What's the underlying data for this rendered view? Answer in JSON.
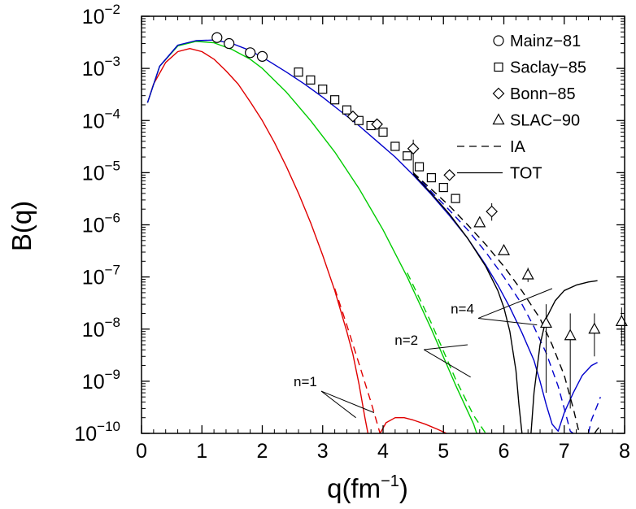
{
  "chart_data": {
    "type": "line",
    "xlabel": "q(fm",
    "xlabel_sup": "−1",
    "xlabel_close": ")",
    "ylabel": "B(q)",
    "xlim": [
      0,
      8
    ],
    "ylim": [
      1e-10,
      0.01
    ],
    "yscale": "log",
    "x_ticks": [
      "0",
      "1",
      "2",
      "3",
      "4",
      "5",
      "6",
      "7",
      "8"
    ],
    "y_ticks": [
      {
        "base": "10",
        "exp": "−10",
        "value": 1e-10
      },
      {
        "base": "10",
        "exp": "−9",
        "value": 1e-09
      },
      {
        "base": "10",
        "exp": "−8",
        "value": 1e-08
      },
      {
        "base": "10",
        "exp": "−7",
        "value": 1e-07
      },
      {
        "base": "10",
        "exp": "−6",
        "value": 1e-06
      },
      {
        "base": "10",
        "exp": "−5",
        "value": 1e-05
      },
      {
        "base": "10",
        "exp": "−4",
        "value": 0.0001
      },
      {
        "base": "10",
        "exp": "−3",
        "value": 0.001
      },
      {
        "base": "10",
        "exp": "−2",
        "value": 0.01
      }
    ],
    "legend": [
      {
        "label": "Mainz−81",
        "marker": "circle"
      },
      {
        "label": "Saclay−85",
        "marker": "square"
      },
      {
        "label": "Bonn−85",
        "marker": "diamond"
      },
      {
        "label": "SLAC−90",
        "marker": "triangle"
      },
      {
        "label": "IA",
        "marker": "dashed-line"
      },
      {
        "label": "TOT",
        "marker": "solid-line"
      }
    ],
    "legend_position": "top-right",
    "annotations": [
      {
        "text": "n=1",
        "x": 2.6,
        "y": 8e-10,
        "arrow_to": [
          [
            3.55,
            2e-10
          ],
          [
            3.85,
            2.5e-10
          ]
        ]
      },
      {
        "text": "n=2",
        "x": 4.3,
        "y": 5e-09,
        "arrow_to": [
          [
            5.4,
            5e-09
          ],
          [
            5.45,
            1.2e-09
          ]
        ]
      },
      {
        "text": "n=4",
        "x": 5.2,
        "y": 2e-08,
        "arrow_to": [
          [
            6.8,
            6e-08
          ],
          [
            6.55,
            1.2e-08
          ]
        ]
      }
    ],
    "series": [
      {
        "label": "n=1 TOT",
        "color": "#e00000",
        "dash": false,
        "points": [
          [
            0.1,
            0.00022
          ],
          [
            0.2,
            0.0005
          ],
          [
            0.4,
            0.0013
          ],
          [
            0.6,
            0.0021
          ],
          [
            0.8,
            0.0024
          ],
          [
            1.0,
            0.0021
          ],
          [
            1.2,
            0.0015
          ],
          [
            1.4,
            0.0009
          ],
          [
            1.6,
            0.0005
          ],
          [
            1.8,
            0.00023
          ],
          [
            2.0,
            0.0001
          ],
          [
            2.2,
            3.8e-05
          ],
          [
            2.4,
            1.3e-05
          ],
          [
            2.6,
            4e-06
          ],
          [
            2.8,
            1.1e-06
          ],
          [
            3.0,
            2.6e-07
          ],
          [
            3.2,
            5.5e-08
          ],
          [
            3.4,
            9e-09
          ],
          [
            3.5,
            3.3e-09
          ],
          [
            3.6,
            9e-10
          ],
          [
            3.7,
            2e-10
          ],
          [
            3.75,
            1e-10
          ]
        ]
      },
      {
        "label": "n=1 IA",
        "color": "#e00000",
        "dash": true,
        "points": [
          [
            3.2,
            6e-08
          ],
          [
            3.4,
            1.2e-08
          ],
          [
            3.6,
            2.2e-09
          ],
          [
            3.8,
            4e-10
          ],
          [
            3.95,
            1e-10
          ]
        ]
      },
      {
        "label": "n=1 TOT tail",
        "color": "#e00000",
        "dash": false,
        "points": [
          [
            3.95,
            1e-10
          ],
          [
            4.05,
            1.6e-10
          ],
          [
            4.2,
            2e-10
          ],
          [
            4.35,
            2e-10
          ],
          [
            4.5,
            1.8e-10
          ],
          [
            4.7,
            1.5e-10
          ],
          [
            4.9,
            1.2e-10
          ],
          [
            5.05,
            1e-10
          ]
        ]
      },
      {
        "label": "n=2 TOT",
        "color": "#00cc00",
        "dash": false,
        "points": [
          [
            0.1,
            0.00022
          ],
          [
            0.3,
            0.0011
          ],
          [
            0.6,
            0.0027
          ],
          [
            0.9,
            0.0033
          ],
          [
            1.2,
            0.0031
          ],
          [
            1.5,
            0.0023
          ],
          [
            1.8,
            0.0015
          ],
          [
            2.0,
            0.001
          ],
          [
            2.4,
            0.00035
          ],
          [
            2.8,
            0.0001
          ],
          [
            3.2,
            2.5e-05
          ],
          [
            3.6,
            5e-06
          ],
          [
            4.0,
            8e-07
          ],
          [
            4.4,
            1e-07
          ],
          [
            4.8,
            1e-08
          ],
          [
            5.2,
            8.5e-10
          ],
          [
            5.5,
            1.5e-10
          ],
          [
            5.55,
            1e-10
          ]
        ]
      },
      {
        "label": "n=2 IA",
        "color": "#00cc00",
        "dash": true,
        "points": [
          [
            4.4,
            1.2e-07
          ],
          [
            4.8,
            1.3e-08
          ],
          [
            5.2,
            1.1e-09
          ],
          [
            5.5,
            2.2e-10
          ],
          [
            5.7,
            1e-10
          ]
        ]
      },
      {
        "label": "n=4 TOT",
        "color": "#0000cc",
        "dash": false,
        "points": [
          [
            0.1,
            0.00022
          ],
          [
            0.3,
            0.0011
          ],
          [
            0.6,
            0.0028
          ],
          [
            0.9,
            0.0034
          ],
          [
            1.2,
            0.0035
          ],
          [
            1.5,
            0.003
          ],
          [
            1.8,
            0.0022
          ],
          [
            2.1,
            0.0014
          ],
          [
            2.4,
            0.00085
          ],
          [
            2.7,
            0.0005
          ],
          [
            3.0,
            0.00028
          ],
          [
            3.3,
            0.00015
          ],
          [
            3.6,
            8e-05
          ],
          [
            3.9,
            4e-05
          ],
          [
            4.2,
            2e-05
          ],
          [
            4.5,
            9e-06
          ],
          [
            4.8,
            3.8e-06
          ],
          [
            5.1,
            1.5e-06
          ],
          [
            5.4,
            5.5e-07
          ],
          [
            5.7,
            1.7e-07
          ],
          [
            5.9,
            7e-08
          ],
          [
            6.1,
            2.6e-08
          ],
          [
            6.3,
            8.5e-09
          ],
          [
            6.5,
            2.5e-09
          ],
          [
            6.6,
            1e-09
          ],
          [
            6.7,
            3.6e-10
          ],
          [
            6.8,
            1.5e-10
          ],
          [
            6.9,
            1.1e-10
          ],
          [
            7.0,
            2.5e-10
          ],
          [
            7.15,
            6e-10
          ],
          [
            7.3,
            1.3e-09
          ],
          [
            7.45,
            2e-09
          ],
          [
            7.55,
            2.3e-09
          ]
        ]
      },
      {
        "label": "n=4 IA",
        "color": "#0000cc",
        "dash": true,
        "points": [
          [
            4.5,
            1e-05
          ],
          [
            4.8,
            4.3e-06
          ],
          [
            5.1,
            1.9e-06
          ],
          [
            5.4,
            8e-07
          ],
          [
            5.7,
            3e-07
          ],
          [
            6.0,
            1e-07
          ],
          [
            6.3,
            3e-08
          ],
          [
            6.5,
            1.1e-08
          ],
          [
            6.7,
            3.5e-09
          ],
          [
            6.9,
            8e-10
          ],
          [
            7.0,
            3e-10
          ],
          [
            7.1,
            1.1e-10
          ],
          [
            7.15,
            1e-10
          ]
        ]
      },
      {
        "label": "n=4 IA tail",
        "color": "#0000cc",
        "dash": true,
        "points": [
          [
            7.4,
            1e-10
          ],
          [
            7.45,
            1.8e-10
          ],
          [
            7.55,
            3.5e-10
          ],
          [
            7.6,
            5e-10
          ]
        ]
      },
      {
        "label": "exact TOT",
        "color": "#000000",
        "dash": false,
        "points": [
          [
            4.5,
            9.5e-06
          ],
          [
            4.8,
            4e-06
          ],
          [
            5.1,
            1.6e-06
          ],
          [
            5.4,
            5.5e-07
          ],
          [
            5.7,
            1.6e-07
          ],
          [
            5.9,
            5.5e-08
          ],
          [
            6.0,
            2.6e-08
          ],
          [
            6.1,
            9e-09
          ],
          [
            6.2,
            1.6e-09
          ],
          [
            6.25,
            3.5e-10
          ],
          [
            6.3,
            1e-10
          ]
        ]
      },
      {
        "label": "exact TOT tail",
        "color": "#000000",
        "dash": false,
        "points": [
          [
            6.45,
            1e-10
          ],
          [
            6.5,
            6e-10
          ],
          [
            6.6,
            5e-09
          ],
          [
            6.7,
            1.6e-08
          ],
          [
            6.85,
            3.5e-08
          ],
          [
            7.0,
            5.5e-08
          ],
          [
            7.2,
            7e-08
          ],
          [
            7.4,
            8e-08
          ],
          [
            7.55,
            8.5e-08
          ]
        ]
      },
      {
        "label": "exact IA",
        "color": "#000000",
        "dash": true,
        "points": [
          [
            4.5,
            1e-05
          ],
          [
            4.8,
            4.8e-06
          ],
          [
            5.1,
            2.3e-06
          ],
          [
            5.4,
            1e-06
          ],
          [
            5.7,
            4.2e-07
          ],
          [
            6.0,
            1.6e-07
          ],
          [
            6.3,
            5.4e-08
          ],
          [
            6.6,
            1.6e-08
          ],
          [
            6.8,
            5e-09
          ],
          [
            7.0,
            1.3e-09
          ],
          [
            7.15,
            3e-10
          ],
          [
            7.25,
            1e-10
          ]
        ]
      },
      {
        "label": "exact IA tail",
        "color": "#000000",
        "dash": true,
        "points": [
          [
            7.5,
            1e-10
          ],
          [
            7.55,
            1.2e-10
          ],
          [
            7.6,
            1.4e-10
          ]
        ]
      }
    ],
    "data_points": {
      "Mainz-81": [
        [
          1.25,
          0.0039
        ],
        [
          1.45,
          0.003
        ],
        [
          1.8,
          0.002
        ],
        [
          2.0,
          0.0017
        ]
      ],
      "Saclay-85": [
        [
          2.6,
          0.00085
        ],
        [
          2.8,
          0.0006
        ],
        [
          3.0,
          0.0004
        ],
        [
          3.2,
          0.00025
        ],
        [
          3.4,
          0.00016
        ],
        [
          3.6,
          0.0001
        ],
        [
          3.8,
          8e-05
        ],
        [
          4.0,
          6e-05
        ],
        [
          4.2,
          3.2e-05
        ],
        [
          4.4,
          2.1e-05
        ],
        [
          4.6,
          1.3e-05
        ],
        [
          4.8,
          8e-06
        ],
        [
          5.0,
          5.2e-06
        ],
        [
          5.2,
          3.2e-06
        ]
      ],
      "Bonn-85": [
        [
          3.5,
          0.00012
        ],
        [
          3.9,
          8.5e-05
        ],
        [
          4.5,
          2.9e-05
        ],
        [
          5.1,
          9e-06
        ],
        [
          5.8,
          1.8e-06
        ]
      ],
      "SLAC-90": [
        [
          5.6,
          1.1e-06
        ],
        [
          6.0,
          3.2e-07
        ],
        [
          6.4,
          1.1e-07
        ],
        [
          6.7,
          1.3e-08
        ],
        [
          7.1,
          7.5e-09
        ],
        [
          7.5,
          1e-08
        ],
        [
          7.95,
          1.4e-08
        ]
      ]
    },
    "error_bars": [
      {
        "x": 4.5,
        "y": 2.9e-05,
        "lo": 1e-05,
        "hi": 4.3e-05
      },
      {
        "x": 5.8,
        "y": 1.8e-06,
        "lo": 1.2e-06,
        "hi": 2.6e-06
      },
      {
        "x": 6.4,
        "y": 1.1e-07,
        "lo": 8e-08,
        "hi": 1.5e-07
      },
      {
        "x": 6.7,
        "y": 1.3e-08,
        "lo": 6e-10,
        "hi": 3e-08
      },
      {
        "x": 7.1,
        "y": 7.5e-09,
        "lo": 3e-10,
        "hi": 2e-08
      },
      {
        "x": 7.5,
        "y": 1e-08,
        "lo": 3e-09,
        "hi": 2e-08
      },
      {
        "x": 7.95,
        "y": 1.4e-08,
        "lo": 5e-09,
        "hi": 2.6e-08
      }
    ]
  }
}
